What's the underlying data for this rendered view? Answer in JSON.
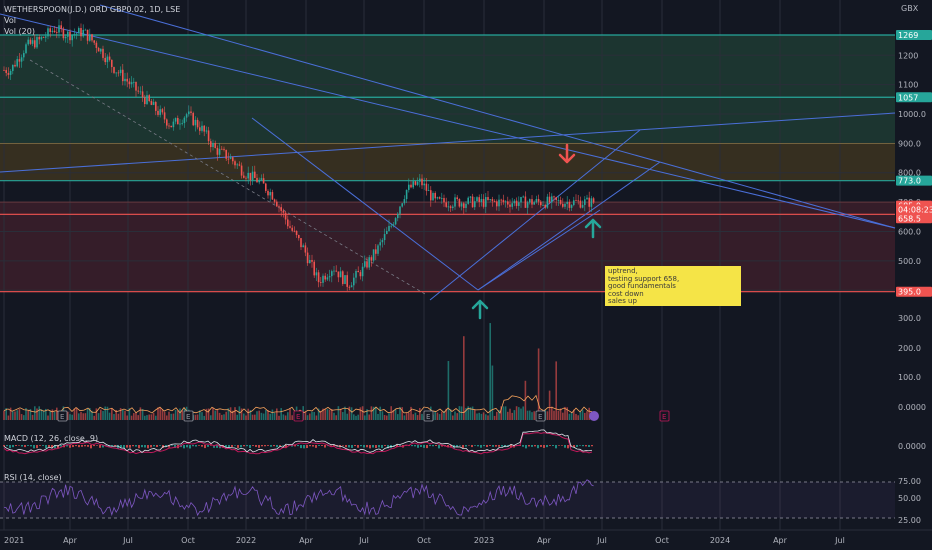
{
  "header": {
    "symbol": "WETHERSPOON(J.D.) ORD GBP0.02, 1D, LSE",
    "volume_label": "Vol",
    "volume_ma_label": "Vol (20)",
    "currency": "GBX",
    "macd_label": "MACD (12, 26, close, 9)",
    "rsi_label": "RSI (14, close)"
  },
  "note": {
    "lines": [
      "uptrend,",
      "testing support 658,",
      "good fundamentals",
      "cost down",
      "sales up"
    ]
  },
  "price_badges": [
    {
      "value": "1269",
      "color": "#26a69a",
      "level": 1269
    },
    {
      "value": "1057",
      "color": "#26a69a",
      "level": 1057
    },
    {
      "value": "773.0",
      "color": "#26a69a",
      "level": 773
    },
    {
      "value": "685.0",
      "color": "#ef5350",
      "level": 688
    },
    {
      "value": "04:08:23",
      "color": "#ef5350",
      "level": 675
    },
    {
      "value": "658.5",
      "color": "#ef5350",
      "level": 645
    },
    {
      "value": "395.0",
      "color": "#ef5350",
      "level": 395
    }
  ],
  "colors": {
    "background": "#131722",
    "up": "#26a69a",
    "down": "#ef5350",
    "trendline": "#4a6fd8",
    "support_line": "#ef5350",
    "resistance_line": "#26a69a",
    "zone_green": "#1e3b33",
    "zone_orange": "#3d3420",
    "zone_red": "#3c1f2a",
    "macd": "#dfe3ea",
    "signal": "#c2185b",
    "rsi": "#7e57c2",
    "note_bg": "#f5e447"
  },
  "chart_data": {
    "type": "candlestick",
    "title": "WETHERSPOON(J.D.) ORD GBP0.02, 1D, LSE",
    "x_ticks": [
      "2021",
      "Apr",
      "Jul",
      "Oct",
      "2022",
      "Apr",
      "Jul",
      "Oct",
      "2023",
      "Apr",
      "Jul",
      "Oct",
      "2024",
      "Apr",
      "Jul"
    ],
    "price_axis": {
      "labels": [
        "1200",
        "1100",
        "1000.0",
        "900.0",
        "800.0",
        "700.0",
        "600.0",
        "500.0",
        "400.0"
      ],
      "values": [
        1200,
        1100,
        1000,
        900,
        800,
        700,
        600,
        500,
        400
      ],
      "unit": "GBX"
    },
    "volume_axis": {
      "labels": [
        "300.0",
        "200.0",
        "100.0",
        "0.0000"
      ],
      "values": [
        300,
        200,
        100,
        0
      ]
    },
    "macd_axis": {
      "labels": [
        "0.0000"
      ],
      "values": [
        0
      ]
    },
    "rsi_axis": {
      "labels": [
        "75.00",
        "50.00",
        "25.00"
      ],
      "values": [
        75,
        50,
        25
      ]
    },
    "horizontal_levels": [
      {
        "value": 1269,
        "kind": "resistance"
      },
      {
        "value": 1057,
        "kind": "resistance"
      },
      {
        "value": 773,
        "kind": "resistance"
      },
      {
        "value": 658.5,
        "kind": "support"
      },
      {
        "value": 395,
        "kind": "support"
      }
    ],
    "zones": [
      {
        "from": 1057,
        "to": 1269,
        "kind": "green"
      },
      {
        "from": 900,
        "to": 1057,
        "kind": "green"
      },
      {
        "from": 773,
        "to": 900,
        "kind": "orange"
      },
      {
        "from": 395,
        "to": 700,
        "kind": "red"
      }
    ],
    "price_path": [
      [
        "2021-01",
        1150
      ],
      [
        "2021-02",
        1230
      ],
      [
        "2021-03",
        1250
      ],
      [
        "2021-04",
        1290
      ],
      [
        "2021-05",
        1270
      ],
      [
        "2021-06",
        1280
      ],
      [
        "2021-07",
        1230
      ],
      [
        "2021-08",
        1160
      ],
      [
        "2021-09",
        1110
      ],
      [
        "2021-10",
        1060
      ],
      [
        "2021-11",
        1010
      ],
      [
        "2021-12",
        960
      ],
      [
        "2022-01",
        1000
      ],
      [
        "2022-02",
        950
      ],
      [
        "2022-03",
        880
      ],
      [
        "2022-04",
        850
      ],
      [
        "2022-05",
        800
      ],
      [
        "2022-06",
        770
      ],
      [
        "2022-07",
        720
      ],
      [
        "2022-08",
        620
      ],
      [
        "2022-09",
        540
      ],
      [
        "2022-10",
        430
      ],
      [
        "2022-11",
        480
      ],
      [
        "2022-12",
        420
      ],
      [
        "2023-01",
        470
      ],
      [
        "2023-02",
        540
      ],
      [
        "2023-03",
        620
      ],
      [
        "2023-04",
        740
      ],
      [
        "2023-05",
        770
      ],
      [
        "2023-06",
        700
      ]
    ],
    "events": [
      "E",
      "E",
      "E",
      "E",
      "E",
      "E"
    ],
    "annotations": [
      {
        "type": "arrow-down",
        "color": "#ef5350",
        "at": [
          "2023-05",
          860
        ]
      },
      {
        "type": "arrow-up",
        "color": "#26a69a",
        "at": [
          "2022-12",
          360
        ]
      },
      {
        "type": "arrow-up",
        "color": "#26a69a",
        "at": [
          "2023-06",
          640
        ]
      }
    ]
  }
}
